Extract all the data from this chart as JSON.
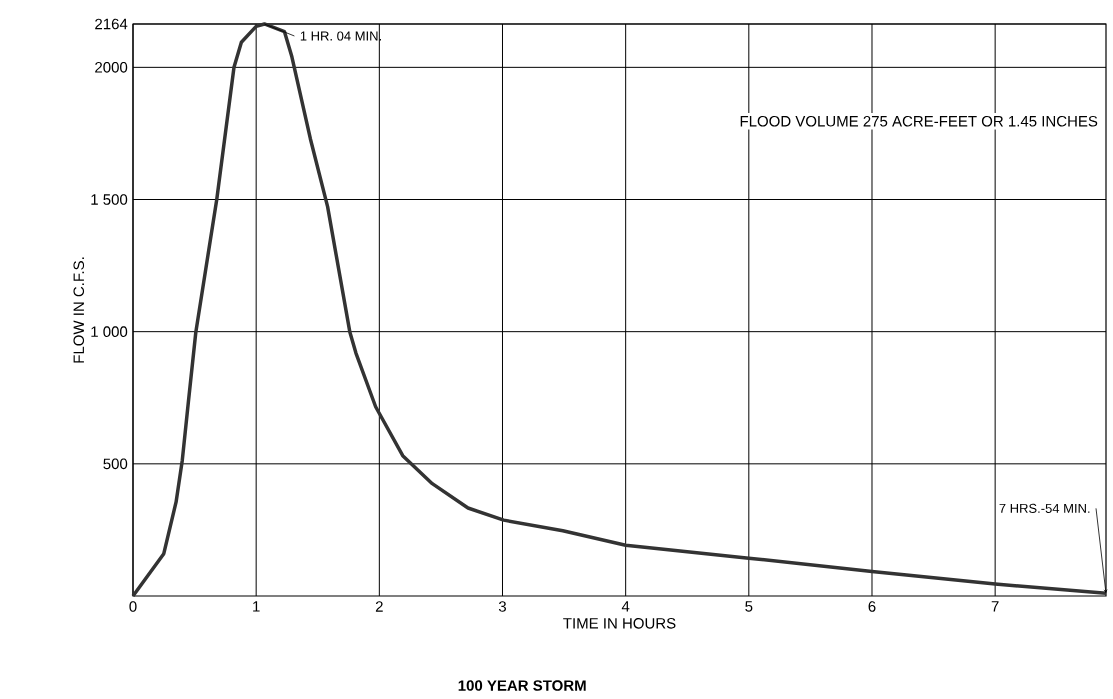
{
  "chart_data": {
    "type": "line",
    "title": "100 YEAR STORM",
    "xlabel": "TIME IN HOURS",
    "ylabel": "FLOW IN C.F.S.",
    "x": [
      0,
      0.25,
      0.35,
      0.4,
      0.45,
      0.51,
      0.68,
      0.82,
      0.88,
      1.0,
      1.067,
      1.23,
      1.29,
      1.44,
      1.58,
      1.76,
      1.81,
      1.97,
      2.19,
      2.43,
      2.72,
      3.01,
      3.49,
      4.0,
      5.0,
      6.0,
      7.0,
      7.9
    ],
    "series": [
      {
        "color": "#333333",
        "values": [
          0,
          160,
          356,
          513,
          736,
          998,
          1500,
          2000,
          2095,
          2155,
          2164,
          2135,
          2040,
          1730,
          1473,
          1000,
          919,
          716,
          531,
          425,
          333,
          287,
          247,
          192,
          143,
          93,
          45,
          10
        ]
      }
    ],
    "xlim": [
      0,
      7.9
    ],
    "ylim": [
      0,
      2164
    ],
    "xticks": [
      0,
      1,
      2,
      3,
      4,
      5,
      6,
      7
    ],
    "yticks": [
      500,
      {
        "value": 1000,
        "label": "1 000"
      },
      {
        "value": 1500,
        "label": "1 500"
      },
      2000,
      2164
    ],
    "grid": true,
    "line_style": "solid",
    "marker": "none",
    "annotations": [
      {
        "text": "1 HR. 04 MIN.",
        "x": 1.067,
        "y": 2164
      },
      {
        "text": "7 HRS.-54 MIN.",
        "x": 7.9,
        "y": 10
      },
      "FLOOD VOLUME 275 ACRE-FEET OR 1.45 INCHES"
    ]
  }
}
